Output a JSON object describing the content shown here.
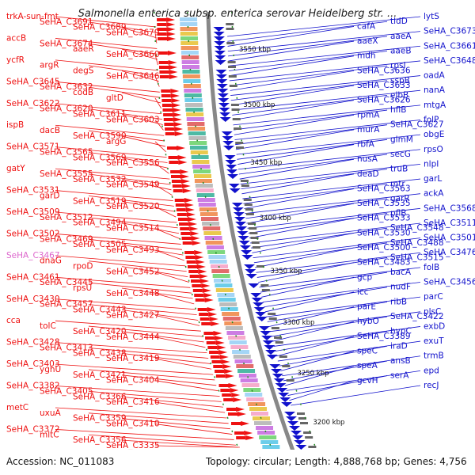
{
  "title": "Salmonella enterica subsp. enterica serovar Heidelberg str. ...",
  "footer": {
    "accession": "Accession: NC_011083",
    "topology": "Topology: circular; Length: 4,888,768 bp; Genes: 4,756"
  },
  "colors": {
    "forward": "#ee1111",
    "reverse": "#1111cc",
    "backbone": "#888888",
    "ticks": "#228822",
    "highlight": "#dd66cc"
  },
  "scale_labels": [
    "3550 kbp",
    "3500 kbp",
    "3450 kbp",
    "3400 kbp",
    "3350 kbp",
    "3300 kbp",
    "3250 kbp",
    "3200 kbp"
  ],
  "left_labels": [
    "trkA-sun-fmt",
    "SeHA_C3691",
    "SeHA_C3689",
    "SeHA_C3679",
    "accB",
    "SeHA_C3674",
    "aaeR",
    "SeHA_C3660",
    "ycfR",
    "argR",
    "degS",
    "SeHA_C3646",
    "SeHA_C3645",
    "SeHA_C3632",
    "codB",
    "gltD",
    "SeHA_C3622",
    "SeHA_C3620",
    "SeHA_C3611",
    "SeHA_C3603",
    "ispB",
    "dacB",
    "SeHA_C3590",
    "argG",
    "SeHA_C3571",
    "SeHA_C3565",
    "SeHA_C3569",
    "SeHA_C3556",
    "gatY",
    "SeHA_C3555",
    "SeHA_C3532",
    "SeHA_C3549",
    "SeHA_C3531",
    "garD",
    "SeHA_C3519",
    "SeHA_C3520",
    "SeHA_C3509",
    "SeHA_C3512",
    "SeHA_C3494",
    "SeHA_C3514",
    "SeHA_C3502",
    "SeHA_C3469",
    "SeHA_C3505",
    "SeHA_C3493",
    "SeHA_C3467",
    "dnaG",
    "rpoD",
    "SeHA_C3452",
    "SeHA_C3461",
    "SeHA_C3445",
    "rpsU",
    "SeHA_C3448",
    "SeHA_C3430",
    "SeHA_C3457",
    "SeHA_C3443",
    "SeHA_C3427",
    "cca",
    "tolC",
    "SeHA_C3420",
    "SeHA_C3444",
    "SeHA_C3428",
    "SeHA_C3413",
    "SeHA_C3438",
    "SeHA_C3419",
    "SeHA_C3403",
    "yghU",
    "SeHA_C3421",
    "SeHA_C3404",
    "SeHA_C3382",
    "SeHA_C3405",
    "SeHA_C3366",
    "SeHA_C3416",
    "metC",
    "uxuA",
    "SeHA_C3359",
    "SeHA_C3410",
    "SeHA_C3372",
    "mltC",
    "SeHA_C3356",
    "SeHA_C3335"
  ],
  "right_labels": [
    "lytS",
    "tldD",
    "cafA",
    "SeHA_C3673",
    "aaeA",
    "aaeX",
    "SeHA_C3661",
    "aaeB",
    "mdh",
    "SeHA_C3648",
    "rpsI",
    "SeHA_C3636",
    "oadA",
    "sspB",
    "SeHA_C3633",
    "nanA",
    "elbB",
    "SeHA_C3626",
    "mtgA",
    "hflB",
    "rpmA",
    "folP",
    "SeHA_C3627",
    "murA",
    "obgE",
    "glmM",
    "rbfA",
    "rpsO",
    "secG",
    "nusA",
    "nlpI",
    "truB",
    "deaD",
    "garL",
    "mtr",
    "SeHA_C3563",
    "ackA",
    "garR",
    "SeHA_C3535",
    "SeHA_C3568",
    "pflB",
    "SeHA_C3533",
    "SeHA_C3511",
    "SeHA_C3548",
    "SeHA_C3530",
    "SeHA_C3501",
    "SeHA_C3488",
    "SeHA_C3500",
    "SeHA_C3476",
    "SeHA_C3515",
    "SeHA_C3483",
    "folB",
    "bacA",
    "gcp",
    "SeHA_C3456",
    "nudF",
    "icc",
    "parC",
    "ribB",
    "parE",
    "plsC",
    "SeHA_C3422",
    "hybO",
    "exbD",
    "hypC",
    "SeHA_C3389",
    "exuT",
    "iraD",
    "speC",
    "trmB",
    "ansB",
    "speA",
    "epd",
    "serA",
    "gcvH",
    "recJ"
  ]
}
